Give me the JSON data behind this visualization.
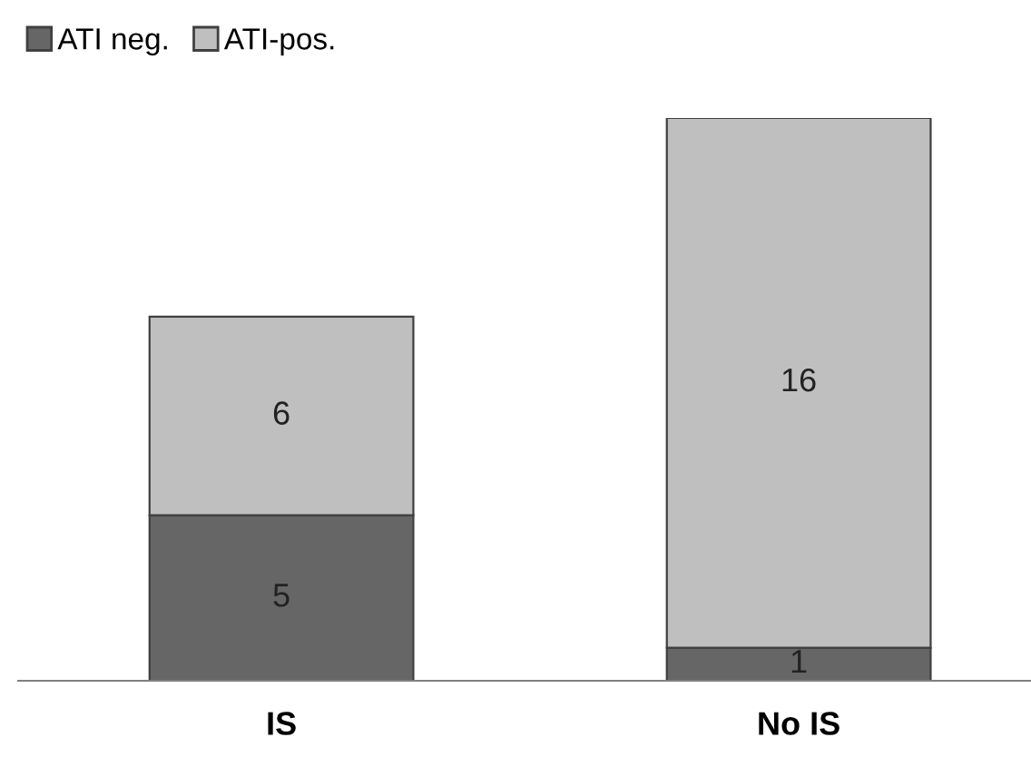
{
  "chart_data": {
    "type": "bar",
    "stacked": true,
    "categories": [
      "IS",
      "No IS"
    ],
    "series": [
      {
        "name": "ATI neg.",
        "color": "#666666",
        "values": [
          5,
          1
        ]
      },
      {
        "name": "ATI-pos.",
        "color": "#bfbfbf",
        "values": [
          6,
          16
        ]
      }
    ],
    "data_labels": true,
    "legend": "top left",
    "grid": false
  }
}
